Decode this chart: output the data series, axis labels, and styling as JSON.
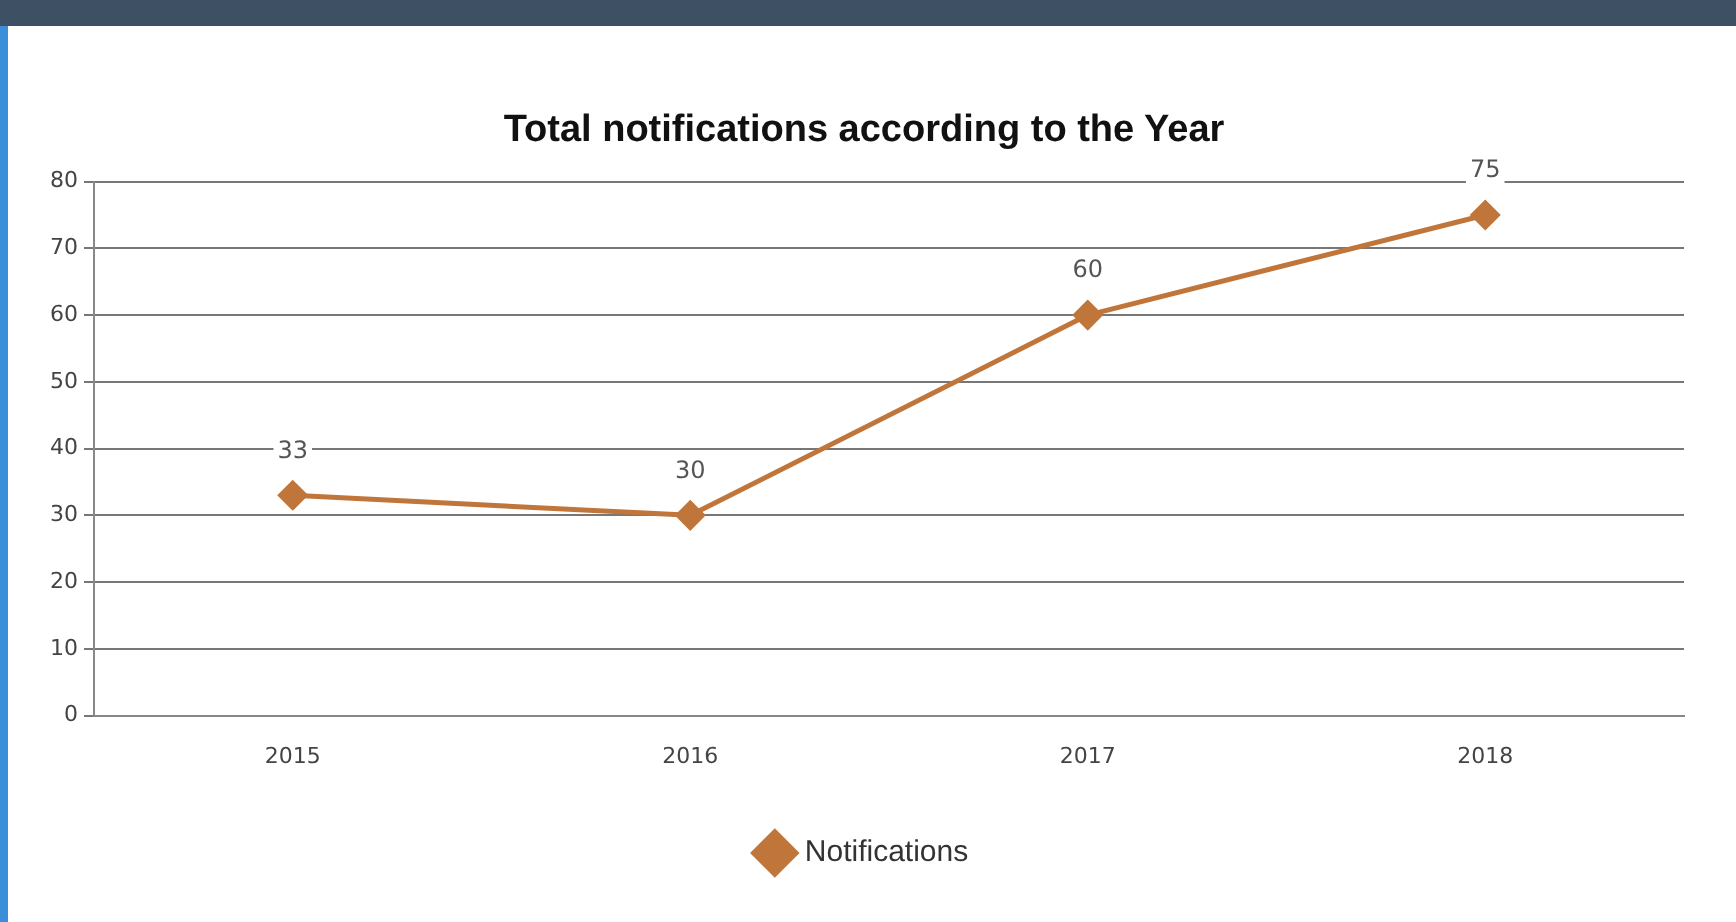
{
  "chart_data": {
    "type": "line",
    "title": "Total notifications according to the Year",
    "categories": [
      "2015",
      "2016",
      "2017",
      "2018"
    ],
    "series": [
      {
        "name": "Notifications",
        "color": "#c0763a",
        "values": [
          33,
          30,
          60,
          75
        ]
      }
    ],
    "ylim": [
      0,
      80
    ],
    "yticks": [
      0,
      10,
      20,
      30,
      40,
      50,
      60,
      70,
      80
    ],
    "grid": "y",
    "legend": "bottom",
    "marker": "diamond",
    "line_style": "solid",
    "data_labels": true
  }
}
